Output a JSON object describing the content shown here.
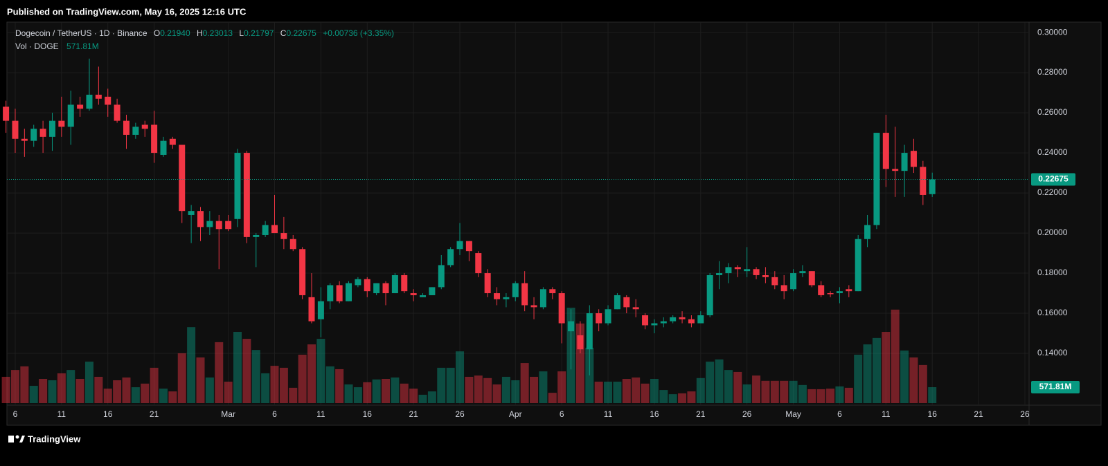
{
  "header": {
    "published": "Published on TradingView.com, May 16, 2025 12:16 UTC"
  },
  "legend": {
    "symbol": "Dogecoin / TetherUS · 1D · Binance",
    "o_label": "O",
    "open": "0.21940",
    "h_label": "H",
    "high": "0.23013",
    "l_label": "L",
    "low": "0.21797",
    "c_label": "C",
    "close": "0.22675",
    "change": "+0.00736 (+3.35%)",
    "vol_label": "Vol · DOGE",
    "vol": "571.81M"
  },
  "footer": {
    "brand": "TradingView"
  },
  "chart_data": {
    "type": "candlestick",
    "x": [
      "02-05",
      "02-06",
      "02-07",
      "02-08",
      "02-09",
      "02-10",
      "02-11",
      "02-12",
      "02-13",
      "02-14",
      "02-15",
      "02-16",
      "02-17",
      "02-18",
      "02-19",
      "02-20",
      "02-21",
      "02-22",
      "02-23",
      "02-24",
      "02-25",
      "02-26",
      "02-27",
      "02-28",
      "03-01",
      "03-02",
      "03-03",
      "03-04",
      "03-05",
      "03-06",
      "03-07",
      "03-08",
      "03-09",
      "03-10",
      "03-11",
      "03-12",
      "03-13",
      "03-14",
      "03-15",
      "03-16",
      "03-17",
      "03-18",
      "03-19",
      "03-20",
      "03-21",
      "03-22",
      "03-23",
      "03-24",
      "03-25",
      "03-26",
      "03-27",
      "03-28",
      "03-29",
      "03-30",
      "03-31",
      "04-01",
      "04-02",
      "04-03",
      "04-04",
      "04-05",
      "04-06",
      "04-07",
      "04-08",
      "04-09",
      "04-10",
      "04-11",
      "04-12",
      "04-13",
      "04-14",
      "04-15",
      "04-16",
      "04-17",
      "04-18",
      "04-19",
      "04-20",
      "04-21",
      "04-22",
      "04-23",
      "04-24",
      "04-25",
      "04-26",
      "04-27",
      "04-28",
      "04-29",
      "04-30",
      "05-01",
      "05-02",
      "05-03",
      "05-04",
      "05-05",
      "05-06",
      "05-07",
      "05-08",
      "05-09",
      "05-10",
      "05-11",
      "05-12",
      "05-13",
      "05-14",
      "05-15",
      "05-16"
    ],
    "open": [
      0.263,
      0.256,
      0.247,
      0.246,
      0.252,
      0.248,
      0.256,
      0.253,
      0.264,
      0.262,
      0.269,
      0.268,
      0.264,
      0.256,
      0.249,
      0.254,
      0.254,
      0.239,
      0.247,
      0.244,
      0.209,
      0.211,
      0.203,
      0.206,
      0.206,
      0.207,
      0.24,
      0.198,
      0.199,
      0.204,
      0.2,
      0.197,
      0.192,
      0.168,
      0.157,
      0.166,
      0.174,
      0.166,
      0.174,
      0.177,
      0.17,
      0.175,
      0.17,
      0.179,
      0.17,
      0.168,
      0.169,
      0.173,
      0.184,
      0.192,
      0.196,
      0.19,
      0.18,
      0.17,
      0.167,
      0.168,
      0.175,
      0.164,
      0.163,
      0.172,
      0.17,
      0.151,
      0.149,
      0.142,
      0.16,
      0.155,
      0.162,
      0.168,
      0.163,
      0.159,
      0.154,
      0.155,
      0.156,
      0.158,
      0.157,
      0.155,
      0.159,
      0.179,
      0.18,
      0.183,
      0.181,
      0.182,
      0.179,
      0.178,
      0.174,
      0.172,
      0.18,
      0.181,
      0.174,
      0.17,
      0.17,
      0.172,
      0.171,
      0.197,
      0.204,
      0.25,
      0.232,
      0.231,
      0.241,
      0.233,
      0.2194
    ],
    "high": [
      0.266,
      0.262,
      0.252,
      0.254,
      0.256,
      0.26,
      0.268,
      0.271,
      0.268,
      0.287,
      0.283,
      0.272,
      0.267,
      0.259,
      0.255,
      0.256,
      0.261,
      0.248,
      0.248,
      0.244,
      0.214,
      0.213,
      0.211,
      0.209,
      0.209,
      0.242,
      0.241,
      0.2,
      0.206,
      0.219,
      0.208,
      0.199,
      0.193,
      0.18,
      0.173,
      0.175,
      0.176,
      0.176,
      0.178,
      0.178,
      0.175,
      0.176,
      0.18,
      0.18,
      0.172,
      0.17,
      0.173,
      0.189,
      0.193,
      0.205,
      0.196,
      0.191,
      0.182,
      0.173,
      0.17,
      0.176,
      0.181,
      0.168,
      0.173,
      0.173,
      0.171,
      0.162,
      0.156,
      0.164,
      0.162,
      0.164,
      0.17,
      0.169,
      0.167,
      0.16,
      0.157,
      0.158,
      0.159,
      0.161,
      0.159,
      0.161,
      0.18,
      0.186,
      0.185,
      0.184,
      0.193,
      0.183,
      0.183,
      0.181,
      0.179,
      0.182,
      0.184,
      0.181,
      0.176,
      0.171,
      0.173,
      0.174,
      0.199,
      0.209,
      0.25,
      0.259,
      0.253,
      0.244,
      0.247,
      0.236,
      0.23013
    ],
    "low": [
      0.25,
      0.24,
      0.238,
      0.243,
      0.24,
      0.241,
      0.248,
      0.244,
      0.258,
      0.261,
      0.264,
      0.258,
      0.255,
      0.242,
      0.247,
      0.248,
      0.235,
      0.238,
      0.242,
      0.205,
      0.195,
      0.196,
      0.199,
      0.182,
      0.201,
      0.203,
      0.195,
      0.183,
      0.198,
      0.2,
      0.192,
      0.191,
      0.167,
      0.155,
      0.148,
      0.162,
      0.165,
      0.166,
      0.173,
      0.168,
      0.169,
      0.164,
      0.17,
      0.17,
      0.166,
      0.168,
      0.169,
      0.172,
      0.183,
      0.189,
      0.186,
      0.178,
      0.168,
      0.164,
      0.163,
      0.166,
      0.161,
      0.157,
      0.162,
      0.167,
      0.145,
      0.132,
      0.14,
      0.129,
      0.151,
      0.154,
      0.162,
      0.16,
      0.158,
      0.152,
      0.15,
      0.153,
      0.155,
      0.155,
      0.153,
      0.155,
      0.158,
      0.172,
      0.175,
      0.178,
      0.178,
      0.177,
      0.175,
      0.172,
      0.167,
      0.171,
      0.178,
      0.173,
      0.168,
      0.168,
      0.165,
      0.168,
      0.171,
      0.193,
      0.202,
      0.223,
      0.218,
      0.218,
      0.23,
      0.214,
      0.21797
    ],
    "close": [
      0.256,
      0.247,
      0.246,
      0.252,
      0.248,
      0.256,
      0.253,
      0.264,
      0.262,
      0.269,
      0.267,
      0.264,
      0.256,
      0.249,
      0.253,
      0.252,
      0.24,
      0.246,
      0.244,
      0.211,
      0.211,
      0.203,
      0.206,
      0.202,
      0.202,
      0.24,
      0.198,
      0.199,
      0.204,
      0.2,
      0.197,
      0.192,
      0.169,
      0.156,
      0.166,
      0.174,
      0.166,
      0.175,
      0.177,
      0.171,
      0.175,
      0.17,
      0.179,
      0.171,
      0.169,
      0.169,
      0.173,
      0.184,
      0.192,
      0.196,
      0.191,
      0.18,
      0.17,
      0.167,
      0.168,
      0.175,
      0.164,
      0.163,
      0.172,
      0.17,
      0.155,
      0.156,
      0.142,
      0.16,
      0.155,
      0.162,
      0.169,
      0.163,
      0.162,
      0.154,
      0.155,
      0.156,
      0.158,
      0.157,
      0.155,
      0.159,
      0.179,
      0.18,
      0.183,
      0.182,
      0.182,
      0.179,
      0.178,
      0.174,
      0.171,
      0.18,
      0.181,
      0.174,
      0.169,
      0.1695,
      0.171,
      0.171,
      0.197,
      0.204,
      0.25,
      0.232,
      0.231,
      0.24,
      0.233,
      0.219,
      0.22675
    ],
    "volume": {
      "name": "Vol · DOGE",
      "values": [
        945,
        1190,
        1320,
        620,
        870,
        820,
        1070,
        1190,
        870,
        1490,
        945,
        520,
        820,
        920,
        570,
        700,
        1270,
        520,
        420,
        1790,
        2730,
        1640,
        920,
        2190,
        770,
        2560,
        2310,
        1910,
        1070,
        1340,
        1270,
        550,
        1740,
        2110,
        2310,
        1320,
        1220,
        670,
        570,
        750,
        850,
        870,
        920,
        700,
        520,
        300,
        420,
        1270,
        1270,
        1860,
        945,
        990,
        900,
        670,
        945,
        820,
        1440,
        945,
        1140,
        370,
        1140,
        3430,
        2860,
        1990,
        770,
        770,
        770,
        870,
        920,
        700,
        870,
        470,
        320,
        350,
        420,
        900,
        1490,
        1570,
        1190,
        1120,
        670,
        990,
        800,
        800,
        800,
        800,
        650,
        500,
        500,
        520,
        600,
        550,
        1740,
        2110,
        2340,
        2560,
        3360,
        1890,
        1640,
        1370,
        571.81
      ]
    },
    "up_color": "#089981",
    "down_color": "#f23645",
    "ylim": [
      0.1145,
      0.3052
    ],
    "yticks": [
      {
        "value": 0.14,
        "label": "0.14000"
      },
      {
        "value": 0.16,
        "label": "0.16000"
      },
      {
        "value": 0.18,
        "label": "0.18000"
      },
      {
        "value": 0.2,
        "label": "0.20000"
      },
      {
        "value": 0.22,
        "label": "0.22000"
      },
      {
        "value": 0.24,
        "label": "0.24000"
      },
      {
        "value": 0.26,
        "label": "0.26000"
      },
      {
        "value": 0.28,
        "label": "0.28000"
      },
      {
        "value": 0.3,
        "label": "0.30000"
      }
    ],
    "xticks": [
      {
        "value": "02-06",
        "label": "6"
      },
      {
        "value": "02-11",
        "label": "11"
      },
      {
        "value": "02-16",
        "label": "16"
      },
      {
        "value": "02-21",
        "label": "21"
      },
      {
        "value": "03-01",
        "label": "Mar"
      },
      {
        "value": "03-06",
        "label": "6"
      },
      {
        "value": "03-11",
        "label": "11"
      },
      {
        "value": "03-16",
        "label": "16"
      },
      {
        "value": "03-21",
        "label": "21"
      },
      {
        "value": "03-26",
        "label": "26"
      },
      {
        "value": "04-01",
        "label": "Apr"
      },
      {
        "value": "04-06",
        "label": "6"
      },
      {
        "value": "04-11",
        "label": "11"
      },
      {
        "value": "04-16",
        "label": "16"
      },
      {
        "value": "04-21",
        "label": "21"
      },
      {
        "value": "04-26",
        "label": "26"
      },
      {
        "value": "05-01",
        "label": "May"
      },
      {
        "value": "05-06",
        "label": "6"
      },
      {
        "value": "05-11",
        "label": "11"
      },
      {
        "value": "05-16",
        "label": "16"
      },
      {
        "value": "05-21",
        "label": "21"
      },
      {
        "value": "05-26",
        "label": "26"
      }
    ],
    "grid": true
  }
}
